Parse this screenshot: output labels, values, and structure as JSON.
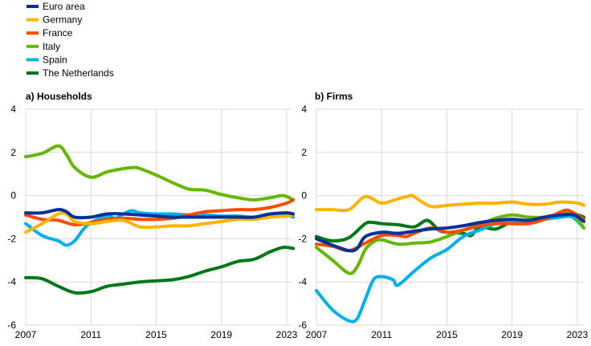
{
  "chart_data": [
    {
      "type": "line",
      "title": "a) Households",
      "xlim": [
        2007,
        2023.4
      ],
      "ylim": [
        -6,
        4
      ],
      "xticks": [
        "2007",
        "2011",
        "2015",
        "2019",
        "2023"
      ],
      "yticks": [
        "4",
        "2",
        "0",
        "-2",
        "-4",
        "-6"
      ],
      "grid": true,
      "legend": "top-left",
      "series": [
        {
          "name": "Euro area",
          "color": "#003299",
          "x": [
            2007,
            2008,
            2009,
            2009.5,
            2010,
            2011,
            2012,
            2013,
            2014,
            2015,
            2016,
            2017,
            2018,
            2019,
            2020,
            2021,
            2022,
            2023,
            2023.4
          ],
          "values": [
            -0.8,
            -0.8,
            -0.65,
            -0.75,
            -1.0,
            -1.0,
            -0.85,
            -0.85,
            -0.9,
            -0.95,
            -1.0,
            -1.0,
            -1.0,
            -1.0,
            -1.0,
            -1.0,
            -0.85,
            -0.8,
            -0.85
          ]
        },
        {
          "name": "Germany",
          "color": "#ffb400",
          "x": [
            2007,
            2008,
            2009,
            2009.5,
            2010,
            2011,
            2012,
            2013,
            2014,
            2015,
            2016,
            2017,
            2018,
            2019,
            2020,
            2021,
            2022,
            2023,
            2023.4
          ],
          "values": [
            -1.7,
            -1.3,
            -0.85,
            -0.85,
            -1.2,
            -1.3,
            -1.2,
            -1.15,
            -1.45,
            -1.45,
            -1.4,
            -1.4,
            -1.3,
            -1.2,
            -1.1,
            -1.1,
            -1.0,
            -0.95,
            -0.9
          ]
        },
        {
          "name": "France",
          "color": "#ff4b00",
          "x": [
            2007,
            2008,
            2009,
            2010,
            2011,
            2012,
            2013,
            2014,
            2015,
            2016,
            2017,
            2018,
            2019,
            2020,
            2021,
            2022,
            2023,
            2023.4
          ],
          "values": [
            -0.9,
            -1.1,
            -1.15,
            -1.35,
            -1.25,
            -1.1,
            -1.05,
            -1.1,
            -1.1,
            -1.05,
            -0.9,
            -0.75,
            -0.7,
            -0.65,
            -0.65,
            -0.55,
            -0.35,
            -0.2
          ]
        },
        {
          "name": "Italy",
          "color": "#65b800",
          "x": [
            2007,
            2008,
            2009,
            2009.5,
            2010,
            2011,
            2012,
            2013,
            2013.7,
            2014,
            2015,
            2016,
            2017,
            2018,
            2019,
            2020,
            2021,
            2022,
            2022.8,
            2023.4
          ],
          "values": [
            1.8,
            1.95,
            2.3,
            1.9,
            1.3,
            0.85,
            1.1,
            1.25,
            1.3,
            1.25,
            0.95,
            0.6,
            0.3,
            0.25,
            0.05,
            -0.1,
            -0.2,
            -0.1,
            0.0,
            -0.2
          ]
        },
        {
          "name": "Spain",
          "color": "#00b1ea",
          "x": [
            2007,
            2008,
            2009,
            2009.5,
            2010,
            2010.5,
            2011,
            2012,
            2012.5,
            2013,
            2013.5,
            2014,
            2015,
            2016,
            2017,
            2018,
            2019,
            2020,
            2021,
            2022,
            2023,
            2023.4
          ],
          "values": [
            -1.3,
            -1.85,
            -2.1,
            -2.3,
            -2.1,
            -1.6,
            -1.25,
            -0.95,
            -1.05,
            -0.85,
            -0.7,
            -0.8,
            -0.85,
            -0.85,
            -0.9,
            -0.9,
            -0.95,
            -0.95,
            -1.0,
            -0.85,
            -0.9,
            -1.0
          ]
        },
        {
          "name": "The Netherlands",
          "color": "#007816",
          "x": [
            2007,
            2008,
            2009,
            2010,
            2011,
            2012,
            2013,
            2014,
            2015,
            2016,
            2017,
            2018,
            2019,
            2020,
            2021,
            2022,
            2022.8,
            2023.4
          ],
          "values": [
            -3.8,
            -3.85,
            -4.2,
            -4.5,
            -4.45,
            -4.2,
            -4.1,
            -4.0,
            -3.95,
            -3.9,
            -3.75,
            -3.5,
            -3.3,
            -3.05,
            -2.95,
            -2.6,
            -2.4,
            -2.45
          ]
        }
      ]
    },
    {
      "type": "line",
      "title": "b) Firms",
      "xlim": [
        2007,
        2023.4
      ],
      "ylim": [
        -6,
        4
      ],
      "xticks": [
        "2007",
        "2011",
        "2015",
        "2019",
        "2023"
      ],
      "yticks": [
        "4",
        "2",
        "0",
        "-2",
        "-4",
        "-6"
      ],
      "grid": true,
      "series": [
        {
          "name": "Euro area",
          "color": "#003299",
          "x": [
            2007,
            2008,
            2009,
            2009.5,
            2010,
            2011,
            2012,
            2013,
            2014,
            2015,
            2016,
            2017,
            2018,
            2019,
            2020,
            2021,
            2022,
            2022.8,
            2023.4
          ],
          "values": [
            -2.0,
            -2.3,
            -2.55,
            -2.45,
            -1.9,
            -1.7,
            -1.75,
            -1.65,
            -1.55,
            -1.5,
            -1.4,
            -1.25,
            -1.15,
            -1.1,
            -1.15,
            -1.0,
            -0.9,
            -0.9,
            -1.2
          ]
        },
        {
          "name": "Germany",
          "color": "#ffb400",
          "x": [
            2007,
            2008,
            2009,
            2010,
            2011,
            2012,
            2012.8,
            2013,
            2014,
            2015,
            2016,
            2017,
            2018,
            2019,
            2020,
            2021,
            2022,
            2023,
            2023.4
          ],
          "values": [
            -0.65,
            -0.65,
            -0.65,
            -0.05,
            -0.35,
            -0.15,
            0.0,
            -0.05,
            -0.5,
            -0.45,
            -0.4,
            -0.35,
            -0.35,
            -0.3,
            -0.4,
            -0.4,
            -0.3,
            -0.35,
            -0.45
          ]
        },
        {
          "name": "France",
          "color": "#ff4b00",
          "x": [
            2007,
            2008,
            2009,
            2010,
            2011,
            2012,
            2012.5,
            2013,
            2014,
            2015,
            2016,
            2017,
            2018,
            2019,
            2020,
            2021,
            2022,
            2022.5,
            2023.4
          ],
          "values": [
            -2.25,
            -2.35,
            -2.55,
            -2.2,
            -1.85,
            -1.85,
            -1.9,
            -1.75,
            -1.5,
            -1.7,
            -1.6,
            -1.4,
            -1.3,
            -1.3,
            -1.3,
            -1.1,
            -0.75,
            -0.7,
            -1.1
          ]
        },
        {
          "name": "Italy",
          "color": "#65b800",
          "x": [
            2007,
            2008,
            2009,
            2009.5,
            2010,
            2010.5,
            2011,
            2012,
            2013,
            2014,
            2015,
            2016,
            2017,
            2018,
            2019,
            2020,
            2021,
            2022,
            2022.7,
            2023.4
          ],
          "values": [
            -2.4,
            -3.0,
            -3.6,
            -3.3,
            -2.5,
            -2.15,
            -2.05,
            -2.25,
            -2.2,
            -2.15,
            -1.9,
            -1.6,
            -1.35,
            -1.05,
            -0.9,
            -1.0,
            -1.0,
            -0.85,
            -0.85,
            -1.5
          ]
        },
        {
          "name": "Spain",
          "color": "#00b1ea",
          "x": [
            2007,
            2008,
            2009,
            2009.5,
            2010,
            2010.5,
            2011,
            2011.7,
            2012,
            2013,
            2014,
            2015,
            2016,
            2017,
            2018,
            2019,
            2020,
            2021,
            2022,
            2022.7,
            2023.4
          ],
          "values": [
            -4.4,
            -5.3,
            -5.8,
            -5.7,
            -4.8,
            -3.9,
            -3.75,
            -3.9,
            -4.15,
            -3.5,
            -2.9,
            -2.5,
            -1.9,
            -1.6,
            -1.3,
            -1.2,
            -1.15,
            -1.1,
            -1.0,
            -1.0,
            -1.5
          ]
        },
        {
          "name": "The Netherlands",
          "color": "#007816",
          "x": [
            2007,
            2008,
            2009,
            2010,
            2010.5,
            2011,
            2012,
            2013,
            2013.8,
            2014.5,
            2015,
            2016,
            2016.5,
            2017,
            2018,
            2019,
            2020,
            2021,
            2022,
            2022.8,
            2023.4
          ],
          "values": [
            -1.9,
            -2.1,
            -1.95,
            -1.3,
            -1.25,
            -1.3,
            -1.35,
            -1.45,
            -1.15,
            -1.6,
            -1.7,
            -1.75,
            -1.85,
            -1.45,
            -1.55,
            -1.2,
            -1.15,
            -1.0,
            -0.85,
            -0.85,
            -1.0
          ]
        }
      ]
    }
  ]
}
